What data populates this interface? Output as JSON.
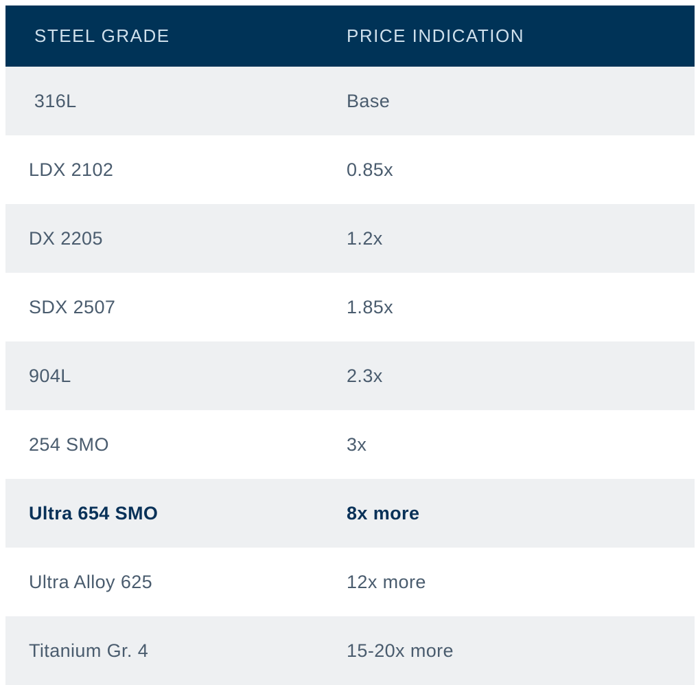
{
  "table": {
    "columns": [
      {
        "label": "STEEL GRADE"
      },
      {
        "label": "PRICE INDICATION"
      }
    ],
    "rows": [
      {
        "grade": " 316L",
        "price": "Base",
        "bold": false
      },
      {
        "grade": "LDX 2102",
        "price": "0.85x",
        "bold": false
      },
      {
        "grade": "DX 2205",
        "price": "1.2x",
        "bold": false
      },
      {
        "grade": "SDX 2507",
        "price": "1.85x",
        "bold": false
      },
      {
        "grade": "904L",
        "price": "2.3x",
        "bold": false
      },
      {
        "grade": "254 SMO",
        "price": "3x",
        "bold": false
      },
      {
        "grade": "Ultra 654 SMO",
        "price": "8x more",
        "bold": true
      },
      {
        "grade": "Ultra Alloy 625",
        "price": "12x more",
        "bold": false
      },
      {
        "grade": "Titanium Gr. 4",
        "price": "15-20x more",
        "bold": false
      }
    ],
    "colors": {
      "header_bg": "#003357",
      "header_text": "#cfe0ec",
      "row_bg": "#ffffff",
      "row_alt_bg": "#eef0f2",
      "row_text": "#4a5c6e",
      "bold_text": "#083158"
    }
  }
}
